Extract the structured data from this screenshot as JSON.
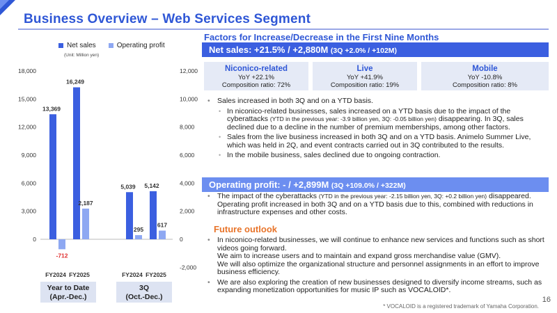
{
  "page": {
    "title": "Business Overview – Web Services Segment",
    "page_number": "16",
    "footnote": "* VOCALOID is a registered trademark of Yamaha Corporation."
  },
  "chart": {
    "legend": {
      "net_sales": "Net sales",
      "operating_profit": "Operating profit"
    },
    "unit": "(Unit: Million yen)",
    "periods": [
      "Year to Date\n(Apr.-Dec.)",
      "3Q\n(Oct.-Dec.)"
    ]
  },
  "chart_data": {
    "type": "bar",
    "categories": [
      "FY2024",
      "FY2025",
      "FY2024",
      "FY2025"
    ],
    "groups": [
      "Year to Date (Apr.-Dec.)",
      "3Q (Oct.-Dec.)"
    ],
    "series": [
      {
        "name": "Net sales",
        "axis": "left",
        "color": "#3b5fe0",
        "values": [
          13369,
          16249,
          5039,
          5142
        ],
        "labels": [
          "13,369",
          "16,249",
          "5,039",
          "5,142"
        ]
      },
      {
        "name": "Operating profit",
        "axis": "right",
        "color": "#8ea8f2",
        "values": [
          -712,
          2187,
          295,
          617
        ],
        "labels": [
          "-712",
          "2,187",
          "295",
          "617"
        ]
      }
    ],
    "left_axis": {
      "ylim": [
        0,
        18000
      ],
      "ticks": [
        "0",
        "3,000",
        "6,000",
        "9,000",
        "12,000",
        "15,000",
        "18,000"
      ]
    },
    "right_axis": {
      "ylim": [
        -2000,
        12000
      ],
      "ticks": [
        "-2,000",
        "0",
        "2,000",
        "4,000",
        "6,000",
        "8,000",
        "10,000",
        "12,000"
      ]
    },
    "negative_label_color": "#e03030"
  },
  "right": {
    "factors_heading": "Factors for Increase/Decrease in the First Nine Months",
    "net_sales_bar": "Net sales: +21.5% / +2,880M",
    "net_sales_bar_sub": "(3Q +2.0% / +102M)",
    "segments": [
      {
        "name": "Niconico-related",
        "yoy": "YoY +22.1%",
        "ratio": "Composition ratio: 72%"
      },
      {
        "name": "Live",
        "yoy": "YoY +41.9%",
        "ratio": "Composition ratio: 19%"
      },
      {
        "name": "Mobile",
        "yoy": "YoY -10.8%",
        "ratio": "Composition ratio: 8%"
      }
    ],
    "sales_bullets": {
      "main": "Sales increased in both 3Q and on a YTD basis.",
      "sub1a": "In niconico-related businesses, sales increased on a YTD basis due to the impact of the cyberattacks",
      "sub1b": "(YTD in the previous year: -3.9 billion yen, 3Q: -0.05 billion yen)",
      "sub1c": "disappearing. In 3Q, sales declined due to a decline in the number of premium memberships, among other factors.",
      "sub2": "Sales from the live business increased in both 3Q and on a YTD basis. Animelo Summer Live, which was held in 2Q, and event contracts carried out in 3Q contributed to the results.",
      "sub3": "In the mobile business, sales declined due to ongoing contraction."
    },
    "op_bar": "Operating profit: - / +2,899M",
    "op_bar_sub": "(3Q +109.0% / +322M)",
    "op_bullet_a": "The impact of the cyberattacks",
    "op_bullet_b": "(YTD in the previous year: -2.15 billion yen, 3Q: +0.2 billion yen)",
    "op_bullet_c": "disappeared. Operating profit increased in both 3Q and on a YTD basis due to this, combined with reductions in infrastructure expenses and other costs.",
    "future_heading": "Future outlook",
    "future_1a": "In niconico-related businesses, we will continue to enhance new services and functions such as short videos going forward.",
    "future_1b": "We aim to increase users and to maintain and expand gross merchandise value (GMV).",
    "future_1c": "We will also optimize the organizational structure and personnel assignments in an effort to improve business efficiency.",
    "future_2": "We are also exploring the creation of new businesses designed to diversify income streams, such as expanding monetization opportunities for music IP such as VOCALOID*."
  }
}
